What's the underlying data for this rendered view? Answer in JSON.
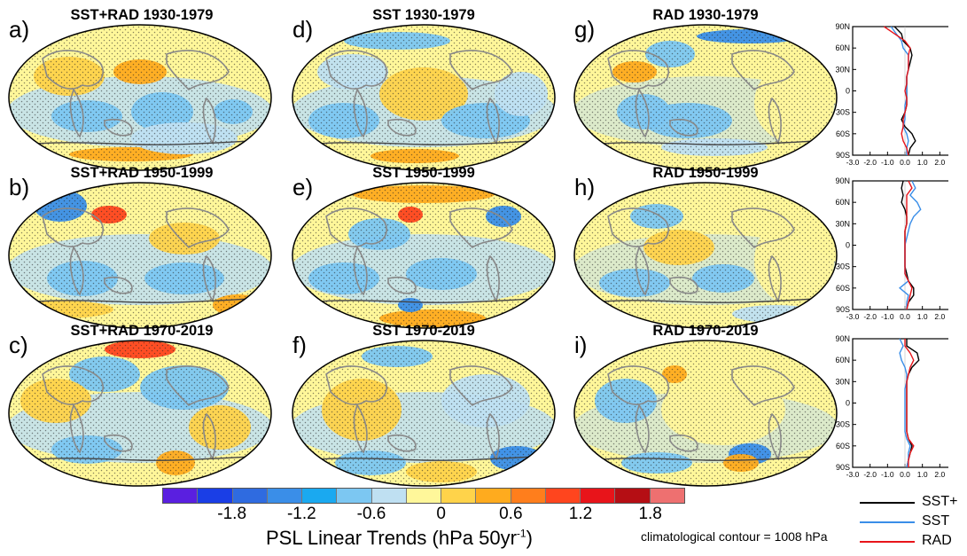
{
  "panels": [
    {
      "label": "a)",
      "title": "SST+RAD 1930-1979"
    },
    {
      "label": "b)",
      "title": "SST+RAD 1950-1999"
    },
    {
      "label": "c)",
      "title": "SST+RAD 1970-2019"
    },
    {
      "label": "d)",
      "title": "SST 1930-1979"
    },
    {
      "label": "e)",
      "title": "SST 1950-1999"
    },
    {
      "label": "f)",
      "title": "SST 1970-2019"
    },
    {
      "label": "g)",
      "title": "RAD 1930-1979"
    },
    {
      "label": "h)",
      "title": "RAD 1950-1999"
    },
    {
      "label": "i)",
      "title": "RAD 1970-2019"
    }
  ],
  "profile_axis": {
    "lat_ticks": [
      "90N",
      "60N",
      "30N",
      "0",
      "30S",
      "60S",
      "90S"
    ],
    "x_ticks": [
      "-3.0",
      "-2.0",
      "-1.0",
      "0.0",
      "1.0",
      "2.0",
      "3.0"
    ],
    "xlim": [
      -3.0,
      3.0
    ]
  },
  "colorbar": {
    "colors": [
      "#5a1fe0",
      "#1a3ee6",
      "#2f6be0",
      "#3a8ee8",
      "#1aa9f0",
      "#7cc7f2",
      "#bfe0f2",
      "#fff79a",
      "#ffd34a",
      "#ffab1e",
      "#ff7e1c",
      "#ff451e",
      "#e8141a",
      "#b50e14",
      "#ee7070"
    ],
    "tick_labels": [
      "-1.8",
      "-1.2",
      "-0.6",
      "0",
      "0.6",
      "1.2",
      "1.8"
    ],
    "title": "PSL Linear Trends (hPa 50yr",
    "title_sup": "-1",
    "title_end": ")"
  },
  "climatological_note": "climatological contour = 1008 hPa",
  "legend": [
    {
      "label": "SST+",
      "color": "#000000"
    },
    {
      "label": "SST",
      "color": "#3a8ee8"
    },
    {
      "label": "RAD",
      "color": "#e8141a"
    }
  ],
  "chart_data": [
    {
      "type": "line",
      "title": "",
      "y": [
        90,
        80,
        70,
        60,
        50,
        40,
        30,
        20,
        10,
        0,
        -10,
        -20,
        -30,
        -40,
        -50,
        -60,
        -70,
        -80,
        -90
      ],
      "ylim": [
        -90,
        90
      ],
      "xlim": [
        -3.0,
        3.0
      ],
      "series": [
        {
          "name": "SST+",
          "values": [
            -0.6,
            -0.2,
            -0.1,
            0.3,
            0.4,
            0.3,
            0.2,
            0.1,
            0.1,
            0.1,
            0.1,
            0.1,
            0.0,
            -0.2,
            0.0,
            0.4,
            0.6,
            0.3,
            0.2
          ]
        },
        {
          "name": "SST",
          "values": [
            -0.8,
            -0.5,
            -0.2,
            -0.1,
            0.2,
            0.2,
            0.2,
            0.1,
            0.1,
            0.1,
            0.1,
            0.0,
            0.0,
            0.0,
            -0.1,
            0.1,
            0.2,
            0.1,
            0.1
          ]
        },
        {
          "name": "RAD",
          "values": [
            -1.2,
            -0.6,
            0.0,
            0.3,
            0.2,
            0.2,
            0.2,
            0.1,
            0.1,
            0.0,
            0.1,
            0.1,
            0.0,
            -0.1,
            -0.1,
            -0.2,
            -0.1,
            0.1,
            0.2
          ]
        }
      ]
    },
    {
      "type": "line",
      "title": "",
      "y": [
        90,
        80,
        70,
        60,
        50,
        40,
        30,
        20,
        10,
        0,
        -10,
        -20,
        -30,
        -40,
        -50,
        -60,
        -70,
        -80,
        -90
      ],
      "ylim": [
        -90,
        90
      ],
      "xlim": [
        -3.0,
        3.0
      ],
      "series": [
        {
          "name": "SST+",
          "values": [
            -0.1,
            -0.2,
            -0.1,
            -0.2,
            0.0,
            0.1,
            0.1,
            0.0,
            0.0,
            0.0,
            0.0,
            0.0,
            0.0,
            0.1,
            0.2,
            0.5,
            0.5,
            0.2,
            0.1
          ]
        },
        {
          "name": "SST",
          "values": [
            0.4,
            0.6,
            0.3,
            0.7,
            0.9,
            0.5,
            0.3,
            0.2,
            0.1,
            0.0,
            0.0,
            0.0,
            0.0,
            0.0,
            0.2,
            -0.3,
            0.2,
            0.1,
            0.1
          ]
        },
        {
          "name": "RAD",
          "values": [
            0.2,
            0.4,
            0.1,
            0.1,
            0.1,
            0.1,
            0.1,
            0.0,
            0.0,
            0.0,
            0.0,
            0.0,
            0.0,
            0.0,
            0.2,
            0.4,
            0.3,
            0.2,
            0.1
          ]
        }
      ]
    },
    {
      "type": "line",
      "title": "",
      "y": [
        90,
        80,
        70,
        60,
        50,
        40,
        30,
        20,
        10,
        0,
        -10,
        -20,
        -30,
        -40,
        -50,
        -60,
        -70,
        -80,
        -90
      ],
      "ylim": [
        -90,
        90
      ],
      "xlim": [
        -3.0,
        3.0
      ],
      "series": [
        {
          "name": "SST+",
          "values": [
            0.1,
            0.1,
            0.7,
            0.8,
            0.4,
            0.2,
            0.1,
            0.1,
            0.1,
            0.1,
            0.1,
            0.1,
            0.1,
            0.1,
            0.2,
            0.4,
            0.3,
            0.2,
            0.1
          ]
        },
        {
          "name": "SST",
          "values": [
            -0.3,
            -0.1,
            -0.3,
            -0.2,
            0.0,
            0.1,
            0.1,
            0.0,
            0.0,
            0.0,
            0.0,
            0.0,
            0.0,
            0.0,
            0.1,
            0.3,
            0.2,
            0.2,
            0.1
          ]
        },
        {
          "name": "RAD",
          "values": [
            0.0,
            0.0,
            0.3,
            0.5,
            0.3,
            0.2,
            0.1,
            0.1,
            0.1,
            0.1,
            0.1,
            0.1,
            0.1,
            0.1,
            0.2,
            0.5,
            0.3,
            0.2,
            0.2
          ]
        }
      ]
    }
  ]
}
